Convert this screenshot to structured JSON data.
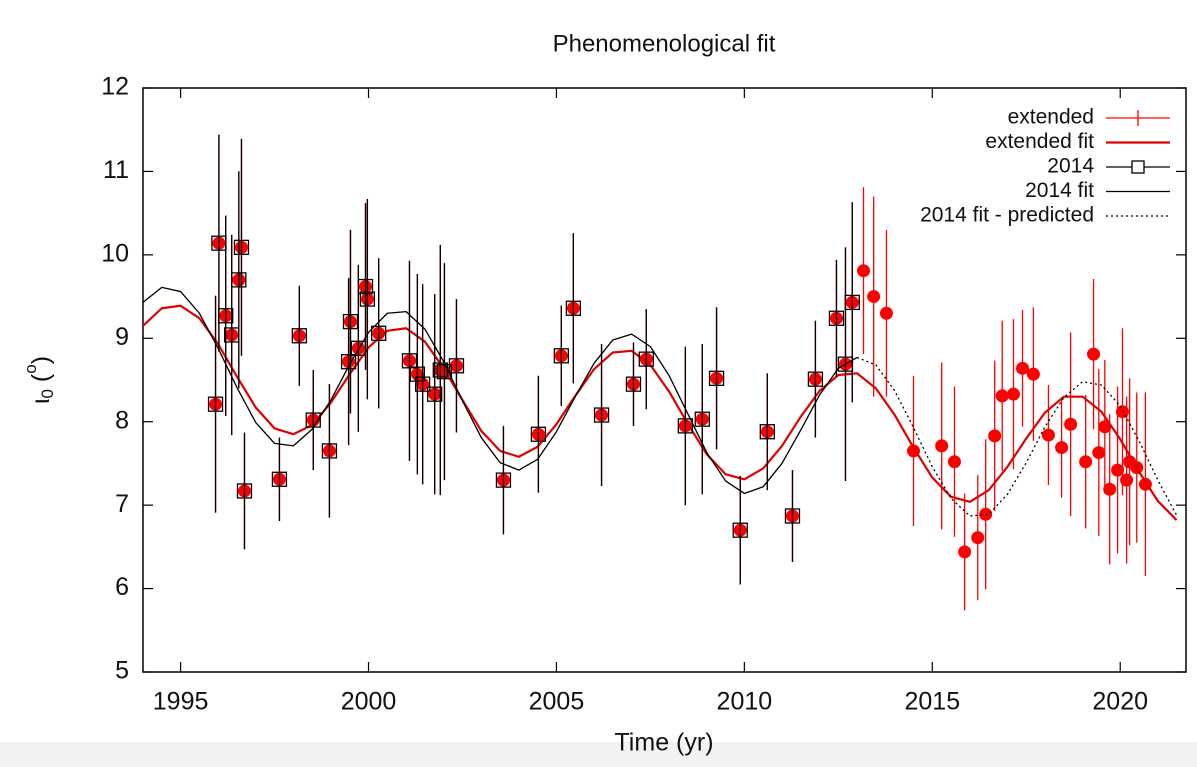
{
  "chart_data": {
    "type": "scatter",
    "title": "Phenomenological fit",
    "xlabel": "Time (yr)",
    "ylabel_parts": [
      "ι",
      "0",
      " (",
      "o",
      ")"
    ],
    "xlim": [
      1994,
      2021.75
    ],
    "ylim": [
      5,
      12
    ],
    "xticks": [
      1995,
      2000,
      2005,
      2010,
      2015,
      2020
    ],
    "yticks": [
      5,
      6,
      7,
      8,
      9,
      10,
      11,
      12
    ],
    "grid": false,
    "legend": "top right",
    "series": [
      {
        "name": "extended",
        "style": "points",
        "marker": "circle",
        "color": "#ff0000",
        "x": [
          1995.93,
          1996.02,
          1996.2,
          1996.36,
          1996.55,
          1996.62,
          1996.7,
          1997.63,
          1998.16,
          1998.53,
          1998.96,
          1999.47,
          1999.52,
          1999.73,
          1999.92,
          1999.97,
          2000.27,
          2001.09,
          2001.3,
          2001.44,
          2001.76,
          2001.91,
          2002.02,
          2002.34,
          2003.59,
          2004.52,
          2005.13,
          2005.45,
          2006.2,
          2007.05,
          2007.39,
          2008.43,
          2008.88,
          2009.26,
          2009.89,
          2010.61,
          2011.28,
          2011.89,
          2012.45,
          2012.69,
          2012.87,
          2013.17,
          2013.44,
          2013.78,
          2014.5,
          2015.25,
          2015.59,
          2015.86,
          2016.21,
          2016.42,
          2016.66,
          2016.86,
          2017.16,
          2017.4,
          2017.69,
          2018.09,
          2018.44,
          2018.68,
          2019.08,
          2019.29,
          2019.43,
          2019.59,
          2019.72,
          2019.93,
          2020.06,
          2020.17,
          2020.25,
          2020.44,
          2020.67
        ],
        "values": [
          8.21,
          10.14,
          9.27,
          9.04,
          9.7,
          10.09,
          7.17,
          7.31,
          9.03,
          8.02,
          7.65,
          8.72,
          9.2,
          8.88,
          9.62,
          9.47,
          9.06,
          8.73,
          8.57,
          8.45,
          8.33,
          8.62,
          8.6,
          8.67,
          7.3,
          7.85,
          8.79,
          9.36,
          8.08,
          8.45,
          8.75,
          7.95,
          8.03,
          8.52,
          6.7,
          7.88,
          6.87,
          8.51,
          9.24,
          8.69,
          9.43,
          9.81,
          9.5,
          9.3,
          7.65,
          7.71,
          7.52,
          6.44,
          6.61,
          6.89,
          7.83,
          8.31,
          8.33,
          8.64,
          8.57,
          7.84,
          7.69,
          7.97,
          7.52,
          8.81,
          7.63,
          7.94,
          7.19,
          7.42,
          8.12,
          7.3,
          7.52,
          7.45,
          7.25
        ],
        "errors": [
          1.3,
          1.3,
          1.2,
          1.2,
          1.3,
          1.3,
          0.7,
          0.5,
          0.6,
          0.6,
          0.8,
          1.0,
          1.1,
          1.0,
          1.0,
          1.2,
          0.9,
          1.2,
          1.2,
          1.2,
          1.2,
          1.5,
          1.3,
          0.8,
          0.65,
          0.7,
          0.6,
          0.9,
          0.85,
          0.5,
          0.6,
          0.95,
          0.9,
          0.85,
          0.65,
          0.7,
          0.55,
          0.7,
          0.7,
          1.4,
          1.2,
          1.0,
          1.2,
          1.0,
          0.9,
          1.0,
          0.9,
          0.7,
          0.75,
          0.9,
          0.9,
          0.9,
          0.9,
          0.7,
          0.8,
          0.6,
          0.6,
          1.1,
          0.8,
          0.9,
          1.0,
          0.8,
          0.9,
          1.0,
          1.0,
          1.0,
          1.0,
          0.9,
          1.1
        ]
      },
      {
        "name": "extended fit",
        "style": "line",
        "dash": "solid",
        "color": "#e00000",
        "x": [
          1994,
          1994.5,
          1995,
          1995.5,
          1996,
          1996.5,
          1997,
          1997.5,
          1998,
          1998.5,
          1999,
          1999.5,
          2000,
          2000.5,
          2001,
          2001.5,
          2002,
          2002.5,
          2003,
          2003.5,
          2004,
          2004.5,
          2005,
          2005.5,
          2006,
          2006.5,
          2007,
          2007.5,
          2008,
          2008.5,
          2009,
          2009.5,
          2010,
          2010.5,
          2011,
          2011.5,
          2012,
          2012.5,
          2013,
          2013.5,
          2014,
          2014.5,
          2015,
          2015.5,
          2016,
          2016.5,
          2017,
          2017.5,
          2018,
          2018.5,
          2019,
          2019.5,
          2020,
          2020.5,
          2021,
          2021.5
        ],
        "values": [
          9.15,
          9.36,
          9.39,
          9.24,
          8.93,
          8.54,
          8.17,
          7.92,
          7.85,
          7.96,
          8.23,
          8.57,
          8.89,
          9.09,
          9.12,
          8.96,
          8.64,
          8.26,
          7.89,
          7.65,
          7.58,
          7.7,
          7.97,
          8.31,
          8.63,
          8.83,
          8.85,
          8.68,
          8.36,
          7.97,
          7.61,
          7.37,
          7.31,
          7.44,
          7.71,
          8.06,
          8.37,
          8.56,
          8.58,
          8.4,
          8.08,
          7.69,
          7.33,
          7.1,
          7.04,
          7.18,
          7.46,
          7.8,
          8.11,
          8.3,
          8.3,
          8.12,
          7.79,
          7.4,
          7.05,
          6.82
        ]
      },
      {
        "name": "2014",
        "style": "points",
        "marker": "square",
        "color": "#000000",
        "x": [
          1995.93,
          1996.02,
          1996.2,
          1996.36,
          1996.55,
          1996.62,
          1996.7,
          1997.63,
          1998.16,
          1998.53,
          1998.96,
          1999.47,
          1999.52,
          1999.73,
          1999.92,
          1999.97,
          2000.27,
          2001.09,
          2001.3,
          2001.44,
          2001.76,
          2001.91,
          2002.02,
          2002.34,
          2003.59,
          2004.52,
          2005.13,
          2005.45,
          2006.2,
          2007.05,
          2007.39,
          2008.43,
          2008.88,
          2009.26,
          2009.89,
          2010.61,
          2011.28,
          2011.89,
          2012.45,
          2012.69,
          2012.87
        ],
        "values": [
          8.21,
          10.14,
          9.27,
          9.04,
          9.7,
          10.09,
          7.17,
          7.31,
          9.03,
          8.02,
          7.65,
          8.72,
          9.2,
          8.88,
          9.62,
          9.47,
          9.06,
          8.73,
          8.57,
          8.45,
          8.33,
          8.62,
          8.6,
          8.67,
          7.3,
          7.85,
          8.79,
          9.36,
          8.08,
          8.45,
          8.75,
          7.95,
          8.03,
          8.52,
          6.7,
          7.88,
          6.87,
          8.51,
          9.24,
          8.69,
          9.43
        ],
        "errors": [
          1.3,
          1.3,
          1.2,
          1.2,
          1.3,
          1.3,
          0.7,
          0.5,
          0.6,
          0.6,
          0.8,
          1.0,
          1.1,
          1.0,
          1.0,
          1.2,
          0.9,
          1.2,
          1.2,
          1.2,
          1.2,
          1.5,
          1.3,
          0.8,
          0.65,
          0.7,
          0.6,
          0.9,
          0.85,
          0.5,
          0.6,
          0.95,
          0.9,
          0.85,
          0.65,
          0.7,
          0.55,
          0.7,
          0.7,
          1.4,
          1.2
        ]
      },
      {
        "name": "2014 fit",
        "style": "line",
        "dash": "solid",
        "color": "#000000",
        "x": [
          1994,
          1994.5,
          1995,
          1995.5,
          1996,
          1996.5,
          1997,
          1997.5,
          1998,
          1998.5,
          1999,
          1999.5,
          2000,
          2000.5,
          2001,
          2001.5,
          2002,
          2002.5,
          2003,
          2003.5,
          2004,
          2004.5,
          2005,
          2005.5,
          2006,
          2006.5,
          2007,
          2007.5,
          2008,
          2008.5,
          2009,
          2009.5,
          2010,
          2010.5,
          2011,
          2011.5,
          2012,
          2012.5,
          2013
        ],
        "values": [
          9.43,
          9.61,
          9.56,
          9.3,
          8.88,
          8.41,
          7.99,
          7.74,
          7.71,
          7.91,
          8.26,
          8.69,
          9.07,
          9.3,
          9.32,
          9.11,
          8.72,
          8.25,
          7.81,
          7.51,
          7.42,
          7.55,
          7.88,
          8.3,
          8.7,
          8.98,
          9.05,
          8.9,
          8.55,
          8.09,
          7.63,
          7.29,
          7.14,
          7.22,
          7.5,
          7.9,
          8.32,
          8.64,
          8.77
        ]
      },
      {
        "name": "2014 fit - predicted",
        "style": "line",
        "dash": "dotted",
        "color": "#000000",
        "x": [
          2013,
          2013.5,
          2014,
          2014.5,
          2015,
          2015.5,
          2016,
          2016.5,
          2017,
          2017.5,
          2018,
          2018.5,
          2019,
          2019.5,
          2020,
          2020.5,
          2021,
          2021.5
        ],
        "values": [
          8.77,
          8.68,
          8.37,
          7.93,
          7.46,
          7.08,
          6.87,
          6.89,
          7.13,
          7.51,
          7.94,
          8.29,
          8.48,
          8.44,
          8.19,
          7.77,
          7.3,
          6.88
        ]
      }
    ]
  }
}
